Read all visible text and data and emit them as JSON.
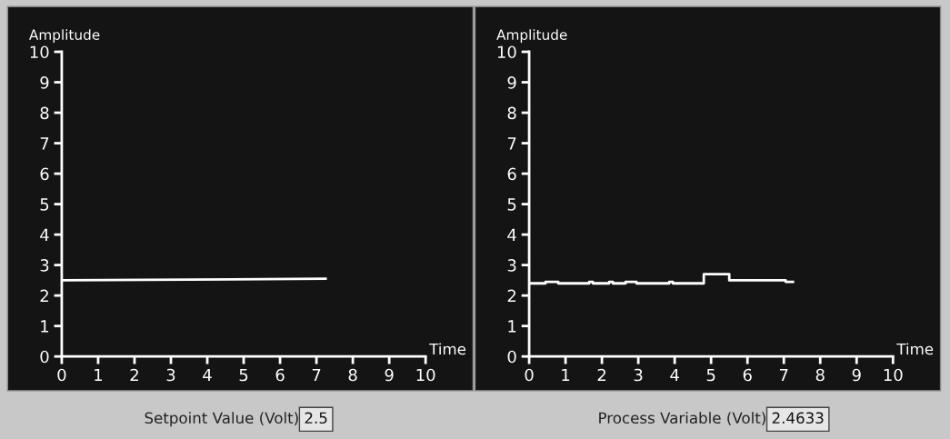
{
  "chart_data": [
    {
      "type": "line",
      "ylabel": "Amplitude",
      "xlabel": "Time",
      "xlim": [
        0,
        10
      ],
      "ylim": [
        0,
        10
      ],
      "xticks": [
        0,
        1,
        2,
        3,
        4,
        5,
        6,
        7,
        8,
        9,
        10
      ],
      "yticks": [
        0,
        1,
        2,
        3,
        4,
        5,
        6,
        7,
        8,
        9,
        10
      ],
      "grid": false,
      "legend": false,
      "series": [
        {
          "x": [
            0,
            7.25
          ],
          "values": [
            2.5,
            2.55
          ],
          "color": "#ffffff"
        }
      ],
      "annotations": [
        "Setpoint Value (Volt)",
        "2.5"
      ]
    },
    {
      "type": "step",
      "ylabel": "Amplitude",
      "xlabel": "Time",
      "xlim": [
        0,
        10
      ],
      "ylim": [
        0,
        10
      ],
      "xticks": [
        0,
        1,
        2,
        3,
        4,
        5,
        6,
        7,
        8,
        9,
        10
      ],
      "yticks": [
        0,
        1,
        2,
        3,
        4,
        5,
        6,
        7,
        8,
        9,
        10
      ],
      "grid": false,
      "legend": false,
      "series": [
        {
          "x": [
            0,
            0.45,
            0.8,
            1.65,
            1.75,
            2.2,
            2.3,
            2.65,
            2.95,
            3.85,
            3.95,
            4.8,
            5.5,
            7.05,
            7.25
          ],
          "values": [
            2.4,
            2.45,
            2.4,
            2.45,
            2.4,
            2.45,
            2.4,
            2.45,
            2.4,
            2.45,
            2.4,
            2.7,
            2.5,
            2.45,
            2.45
          ],
          "color": "#ffffff"
        }
      ],
      "annotations": [
        "Process Variable (Volt)",
        "2.4633"
      ]
    }
  ]
}
